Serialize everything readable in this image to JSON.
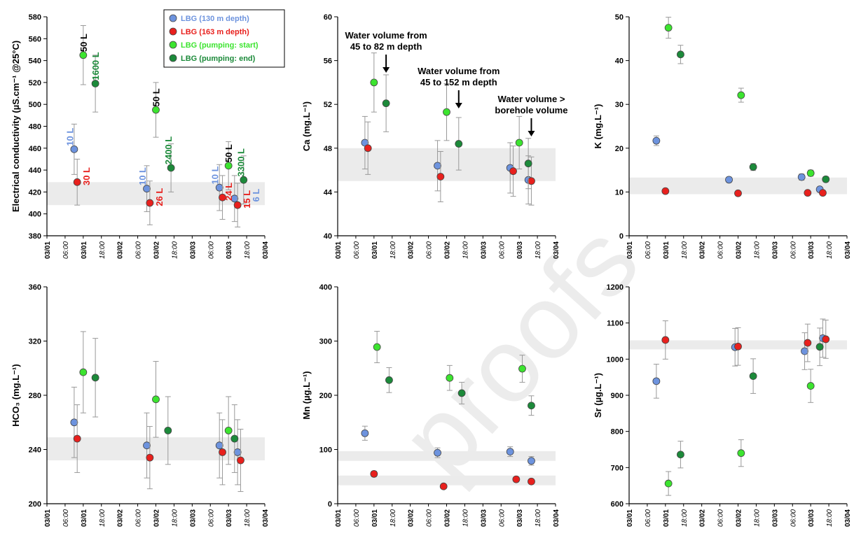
{
  "colors": {
    "LBG (130 m depth)": "#6d93de",
    "LBG (163 m depth)": "#e8201d",
    "LBG (pumping: start)": "#3ce42f",
    "LBG (pumping: end)": "#1c8a3a",
    "band": "#ebebeb",
    "errorbar": "#999999"
  },
  "watermark": "proofs",
  "x_axis": {
    "ticks": [
      "03/01",
      "06:00",
      "03/01",
      "18:00",
      "03/02",
      "06:00",
      "03/02",
      "18:00",
      "03/03",
      "06:00",
      "03/03",
      "18:00",
      "03/04"
    ],
    "italic_ticks": [
      "06:00",
      "18:00"
    ]
  },
  "legend": {
    "placement": "top-right of first panel",
    "entries": [
      "LBG (130 m depth)",
      "LBG (163 m depth)",
      "LBG (pumping: start)",
      "LBG (pumping: end)"
    ]
  },
  "chart_data": [
    {
      "type": "scatter",
      "ylabel": "Electrical conductivity (µS.cm⁻¹ @25°C)",
      "ylim": [
        380,
        580
      ],
      "yticks": [
        380,
        400,
        420,
        440,
        460,
        480,
        500,
        520,
        540,
        560,
        580
      ],
      "reference_bands": [
        [
          408,
          429
        ]
      ],
      "series": [
        {
          "name": "LBG (130 m depth)",
          "points": [
            {
              "t": 9,
              "v": 459,
              "err": 23
            },
            {
              "t": 33,
              "v": 423,
              "err": 21
            },
            {
              "t": 57,
              "v": 424,
              "err": 21
            },
            {
              "t": 62,
              "v": 414,
              "err": 21
            }
          ]
        },
        {
          "name": "LBG (163 m depth)",
          "points": [
            {
              "t": 10,
              "v": 429,
              "err": 21
            },
            {
              "t": 34,
              "v": 410,
              "err": 20
            },
            {
              "t": 58,
              "v": 415,
              "err": 20
            },
            {
              "t": 63,
              "v": 408,
              "err": 20
            }
          ]
        },
        {
          "name": "LBG (pumping: start)",
          "points": [
            {
              "t": 12,
              "v": 545,
              "err": 27
            },
            {
              "t": 36,
              "v": 495,
              "err": 25
            },
            {
              "t": 60,
              "v": 444,
              "err": 22
            }
          ]
        },
        {
          "name": "LBG (pumping: end)",
          "points": [
            {
              "t": 16,
              "v": 519,
              "err": 26
            },
            {
              "t": 41,
              "v": 442,
              "err": 22
            },
            {
              "t": 65,
              "v": 431,
              "err": 22
            }
          ]
        }
      ],
      "annotations": [
        {
          "text": "50 L",
          "t": 12,
          "v": 548,
          "color": "#000000"
        },
        {
          "text": "1600 L",
          "t": 16,
          "v": 522,
          "color": "#1c8a3a"
        },
        {
          "text": "10 L",
          "t": 7.5,
          "v": 462,
          "color": "#6d93de"
        },
        {
          "text": "30 L",
          "t": 13,
          "v": 426,
          "color": "#e8201d"
        },
        {
          "text": "50 L",
          "t": 36,
          "v": 498,
          "color": "#000000"
        },
        {
          "text": "2400 L",
          "t": 40,
          "v": 445,
          "color": "#1c8a3a"
        },
        {
          "text": "10 L",
          "t": 31.5,
          "v": 426,
          "color": "#6d93de"
        },
        {
          "text": "26 L",
          "t": 37,
          "v": 407,
          "color": "#e8201d"
        },
        {
          "text": "50 L",
          "t": 60,
          "v": 447,
          "color": "#000000"
        },
        {
          "text": "3300 L",
          "t": 64,
          "v": 434,
          "color": "#1c8a3a"
        },
        {
          "text": "10 L",
          "t": 55.5,
          "v": 427,
          "color": "#6d93de"
        },
        {
          "text": "24 L",
          "t": 60,
          "v": 412,
          "color": "#e8201d"
        },
        {
          "text": "6 L",
          "t": 69,
          "v": 411,
          "color": "#6d93de"
        },
        {
          "text": "15 L",
          "t": 66,
          "v": 405,
          "color": "#e8201d"
        }
      ]
    },
    {
      "type": "scatter",
      "ylabel": "Ca (mg.L⁻¹)",
      "ylim": [
        40,
        60
      ],
      "yticks": [
        40,
        44,
        48,
        52,
        56,
        60
      ],
      "reference_bands": [
        [
          45,
          48
        ]
      ],
      "series": [
        {
          "name": "LBG (130 m depth)",
          "points": [
            {
              "t": 9,
              "v": 48.5,
              "err": 2.4
            },
            {
              "t": 33,
              "v": 46.4,
              "err": 2.3
            },
            {
              "t": 57,
              "v": 46.2,
              "err": 2.3
            },
            {
              "t": 63,
              "v": 45.1,
              "err": 2.2
            }
          ]
        },
        {
          "name": "LBG (163 m depth)",
          "points": [
            {
              "t": 10,
              "v": 48.0,
              "err": 2.4
            },
            {
              "t": 34,
              "v": 45.4,
              "err": 2.3
            },
            {
              "t": 58,
              "v": 45.9,
              "err": 2.3
            },
            {
              "t": 64,
              "v": 45.0,
              "err": 2.2
            }
          ]
        },
        {
          "name": "LBG (pumping: start)",
          "points": [
            {
              "t": 12,
              "v": 54.0,
              "err": 2.7
            },
            {
              "t": 36,
              "v": 51.3,
              "err": 2.6
            },
            {
              "t": 60,
              "v": 48.5,
              "err": 2.4
            }
          ]
        },
        {
          "name": "LBG (pumping: end)",
          "points": [
            {
              "t": 16,
              "v": 52.1,
              "err": 2.6
            },
            {
              "t": 40,
              "v": 48.4,
              "err": 2.4
            },
            {
              "t": 63,
              "v": 46.6,
              "err": 2.3
            }
          ]
        }
      ],
      "notes": [
        {
          "lines": [
            "Water volume from",
            "45 to 82 m depth"
          ],
          "arrow_t": 16
        },
        {
          "lines": [
            "Water volume from",
            "45 to 152 m depth"
          ],
          "arrow_t": 40
        },
        {
          "lines": [
            "Water volume >",
            "borehole volume"
          ],
          "arrow_t": 64
        }
      ]
    },
    {
      "type": "scatter",
      "ylabel": "K (mg.L⁻¹)",
      "ylim": [
        0,
        50
      ],
      "yticks": [
        0,
        10,
        20,
        30,
        40,
        50
      ],
      "reference_bands": [
        [
          9.5,
          13.3
        ]
      ],
      "series": [
        {
          "name": "LBG (130 m depth)",
          "points": [
            {
              "t": 9,
              "v": 21.7,
              "err": 1.1
            },
            {
              "t": 33,
              "v": 12.8,
              "err": 0.6
            },
            {
              "t": 57,
              "v": 13.4,
              "err": 0.7
            },
            {
              "t": 63,
              "v": 10.6,
              "err": 0.5
            }
          ]
        },
        {
          "name": "LBG (163 m depth)",
          "points": [
            {
              "t": 12,
              "v": 10.2,
              "err": 0.5
            },
            {
              "t": 36,
              "v": 9.7,
              "err": 0.5
            },
            {
              "t": 59,
              "v": 9.8,
              "err": 0.5
            },
            {
              "t": 64,
              "v": 9.8,
              "err": 0.5
            }
          ]
        },
        {
          "name": "LBG (pumping: start)",
          "points": [
            {
              "t": 13,
              "v": 47.5,
              "err": 2.4
            },
            {
              "t": 37,
              "v": 32.1,
              "err": 1.6
            },
            {
              "t": 60,
              "v": 14.3,
              "err": 0.7
            }
          ]
        },
        {
          "name": "LBG (pumping: end)",
          "points": [
            {
              "t": 17,
              "v": 41.4,
              "err": 2.1
            },
            {
              "t": 41,
              "v": 15.7,
              "err": 0.8
            },
            {
              "t": 65,
              "v": 12.9,
              "err": 0.6
            }
          ]
        }
      ]
    },
    {
      "type": "scatter",
      "ylabel": "HCO₃ (mg.L⁻¹)",
      "ylim": [
        200,
        360
      ],
      "yticks": [
        200,
        240,
        280,
        320,
        360
      ],
      "reference_bands": [
        [
          232,
          249
        ]
      ],
      "series": [
        {
          "name": "LBG (130 m depth)",
          "points": [
            {
              "t": 9,
              "v": 260,
              "err": 26
            },
            {
              "t": 33,
              "v": 243,
              "err": 24
            },
            {
              "t": 57,
              "v": 243,
              "err": 24
            },
            {
              "t": 63,
              "v": 238,
              "err": 24
            }
          ]
        },
        {
          "name": "LBG (163 m depth)",
          "points": [
            {
              "t": 10,
              "v": 248,
              "err": 25
            },
            {
              "t": 34,
              "v": 234,
              "err": 23
            },
            {
              "t": 58,
              "v": 238,
              "err": 24
            },
            {
              "t": 64,
              "v": 232,
              "err": 23
            }
          ]
        },
        {
          "name": "LBG (pumping: start)",
          "points": [
            {
              "t": 12,
              "v": 297,
              "err": 30
            },
            {
              "t": 36,
              "v": 277,
              "err": 28
            },
            {
              "t": 60,
              "v": 254,
              "err": 25
            }
          ]
        },
        {
          "name": "LBG (pumping: end)",
          "points": [
            {
              "t": 16,
              "v": 293,
              "err": 29
            },
            {
              "t": 40,
              "v": 254,
              "err": 25
            },
            {
              "t": 62,
              "v": 248,
              "err": 25
            }
          ]
        }
      ]
    },
    {
      "type": "scatter",
      "ylabel": "Mn (µg.L⁻¹)",
      "ylim": [
        0,
        400
      ],
      "yticks": [
        0,
        100,
        200,
        300,
        400
      ],
      "reference_bands": [
        [
          79,
          97
        ],
        [
          34,
          52
        ]
      ],
      "series": [
        {
          "name": "LBG (130 m depth)",
          "points": [
            {
              "t": 9,
              "v": 130,
              "err": 13
            },
            {
              "t": 33,
              "v": 94,
              "err": 9
            },
            {
              "t": 57,
              "v": 96,
              "err": 9
            },
            {
              "t": 64,
              "v": 79,
              "err": 8
            }
          ]
        },
        {
          "name": "LBG (163 m depth)",
          "points": [
            {
              "t": 12,
              "v": 55,
              "err": 5
            },
            {
              "t": 35,
              "v": 32,
              "err": 3
            },
            {
              "t": 59,
              "v": 45,
              "err": 4
            },
            {
              "t": 64,
              "v": 41,
              "err": 4
            }
          ]
        },
        {
          "name": "LBG (pumping: start)",
          "points": [
            {
              "t": 13,
              "v": 289,
              "err": 29
            },
            {
              "t": 37,
              "v": 232,
              "err": 23
            },
            {
              "t": 61,
              "v": 249,
              "err": 25
            }
          ]
        },
        {
          "name": "LBG (pumping: end)",
          "points": [
            {
              "t": 17,
              "v": 228,
              "err": 23
            },
            {
              "t": 41,
              "v": 204,
              "err": 20
            },
            {
              "t": 64,
              "v": 181,
              "err": 18
            }
          ]
        }
      ]
    },
    {
      "type": "scatter",
      "ylabel": "Sr (µg.L⁻¹)",
      "ylim": [
        600,
        1200
      ],
      "yticks": [
        600,
        700,
        800,
        900,
        1000,
        1100,
        1200
      ],
      "reference_bands": [
        [
          1027,
          1052
        ]
      ],
      "series": [
        {
          "name": "LBG (130 m depth)",
          "points": [
            {
              "t": 9,
              "v": 939,
              "err": 47
            },
            {
              "t": 35,
              "v": 1033,
              "err": 52
            },
            {
              "t": 58,
              "v": 1022,
              "err": 51
            },
            {
              "t": 64,
              "v": 1058,
              "err": 53
            }
          ]
        },
        {
          "name": "LBG (163 m depth)",
          "points": [
            {
              "t": 12,
              "v": 1053,
              "err": 53
            },
            {
              "t": 36,
              "v": 1035,
              "err": 52
            },
            {
              "t": 59,
              "v": 1045,
              "err": 52
            },
            {
              "t": 65,
              "v": 1055,
              "err": 53
            }
          ]
        },
        {
          "name": "LBG (pumping: start)",
          "points": [
            {
              "t": 13,
              "v": 656,
              "err": 33
            },
            {
              "t": 37,
              "v": 740,
              "err": 37
            },
            {
              "t": 60,
              "v": 926,
              "err": 46
            }
          ]
        },
        {
          "name": "LBG (pumping: end)",
          "points": [
            {
              "t": 17,
              "v": 736,
              "err": 37
            },
            {
              "t": 41,
              "v": 953,
              "err": 48
            },
            {
              "t": 63,
              "v": 1034,
              "err": 52
            }
          ]
        }
      ]
    }
  ]
}
